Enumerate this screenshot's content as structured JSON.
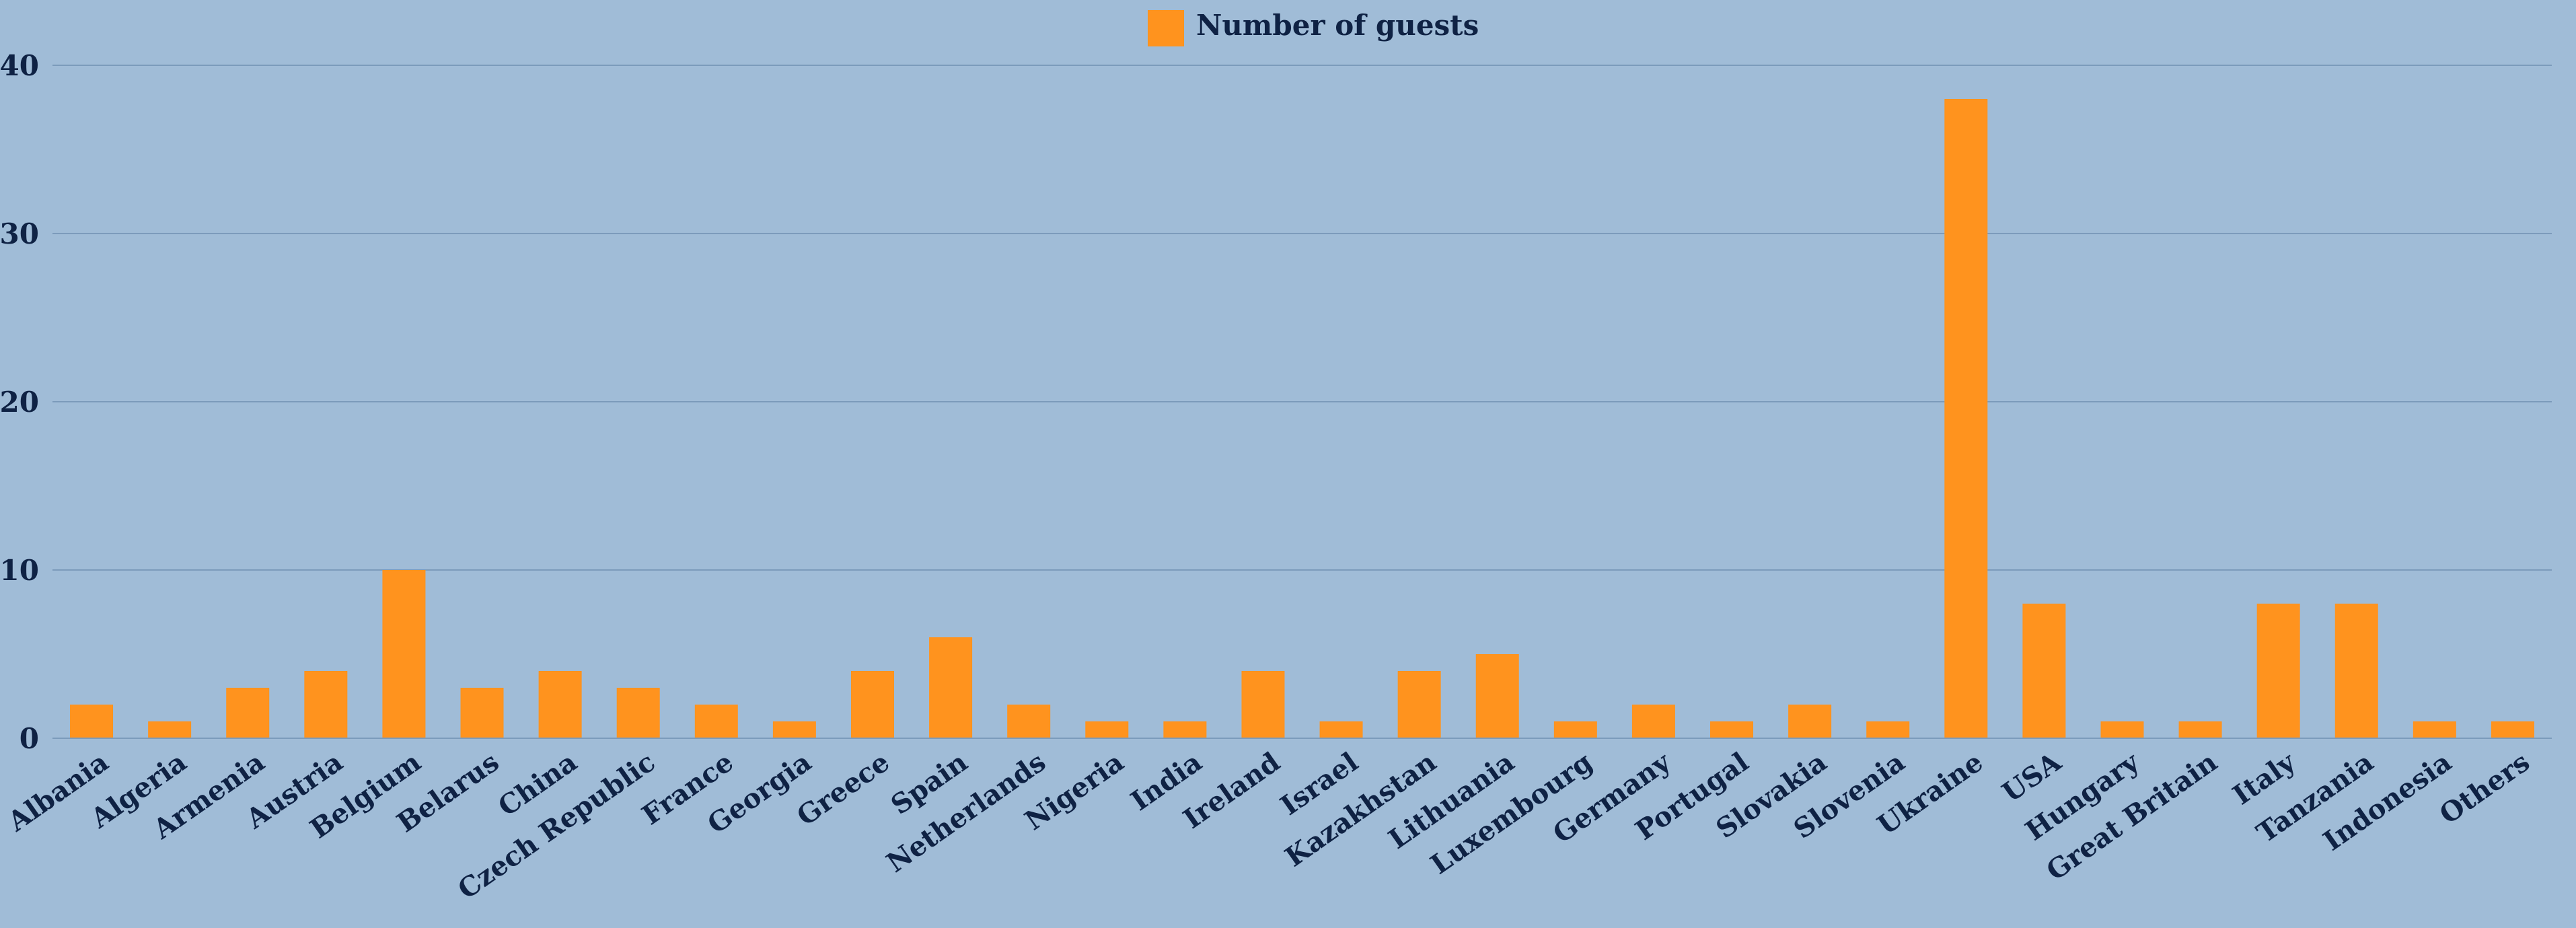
{
  "chart_data": {
    "type": "bar",
    "title": "",
    "xlabel": "",
    "ylabel": "",
    "legend": {
      "position": "top-center"
    },
    "grid": true,
    "ylim": [
      0,
      40
    ],
    "yticks": [
      0,
      10,
      20,
      30,
      40
    ],
    "categories": [
      "Albania",
      "Algeria",
      "Armenia",
      "Austria",
      "Belgium",
      "Belarus",
      "China",
      "Czech Republic",
      "France",
      "Georgia",
      "Greece",
      "Spain",
      "Netherlands",
      "Nigeria",
      "India",
      "Ireland",
      "Israel",
      "Kazakhstan",
      "Lithuania",
      "Luxembourg",
      "Germany",
      "Portugal",
      "Slovakia",
      "Slovenia",
      "Ukraine",
      "USA",
      "Hungary",
      "Great Britain",
      "Italy",
      "Tanzania",
      "Indonesia",
      "Others"
    ],
    "series": [
      {
        "name": "Number of guests",
        "color": "#ff931e",
        "values": [
          2,
          1,
          3,
          4,
          10,
          3,
          4,
          3,
          2,
          1,
          4,
          6,
          2,
          1,
          1,
          4,
          1,
          4,
          5,
          1,
          2,
          1,
          2,
          1,
          38,
          8,
          1,
          1,
          8,
          8,
          1,
          1
        ]
      }
    ]
  },
  "colors": {
    "background": "#a0bcd7",
    "gridline": "#7c9bbb",
    "text": "#0f2244",
    "bar": "#ff931e"
  }
}
